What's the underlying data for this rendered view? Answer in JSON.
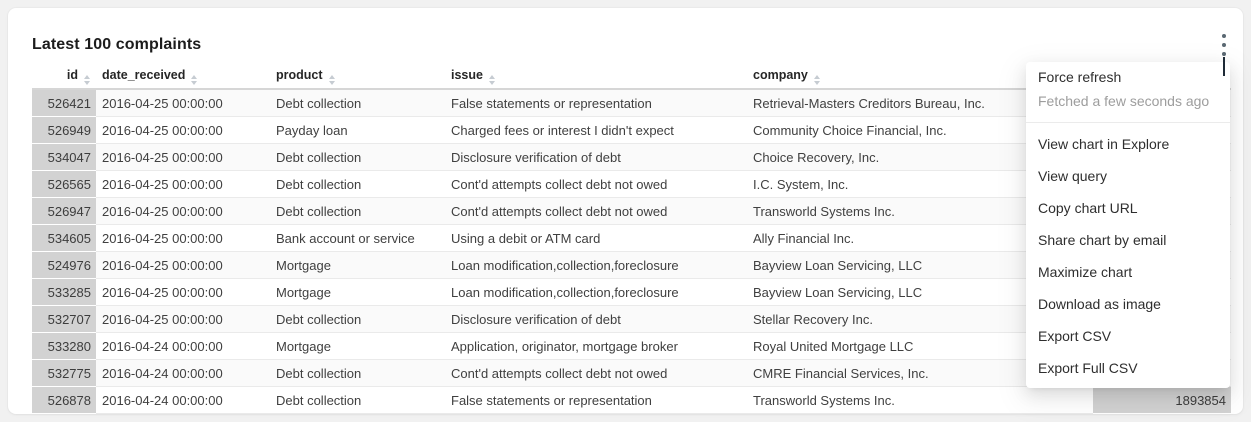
{
  "card": {
    "title": "Latest 100 complaints"
  },
  "colors": {
    "page_bg": "#f1f1f1",
    "card_bg": "#ffffff",
    "numeric_cell_bar": "#d2d2d2",
    "menu_status_text": "#9d9d9d",
    "kebab_icon": "#5a6872"
  },
  "table": {
    "columns": [
      {
        "label": "id",
        "sortable": true,
        "align": "right"
      },
      {
        "label": "date_received",
        "sortable": true,
        "align": "left"
      },
      {
        "label": "product",
        "sortable": true,
        "align": "left"
      },
      {
        "label": "issue",
        "sortable": true,
        "align": "left"
      },
      {
        "label": "company",
        "sortable": true,
        "align": "left"
      },
      {
        "label": "",
        "sortable": false,
        "align": "right"
      }
    ],
    "rows": [
      [
        "526421",
        "2016-04-25 00:00:00",
        "Debt collection",
        "False statements or representation",
        "Retrieval-Masters Creditors Bureau, Inc.",
        ""
      ],
      [
        "526949",
        "2016-04-25 00:00:00",
        "Payday loan",
        "Charged fees or interest I didn't expect",
        "Community Choice Financial, Inc.",
        ""
      ],
      [
        "534047",
        "2016-04-25 00:00:00",
        "Debt collection",
        "Disclosure verification of debt",
        "Choice Recovery, Inc.",
        ""
      ],
      [
        "526565",
        "2016-04-25 00:00:00",
        "Debt collection",
        "Cont'd attempts collect debt not owed",
        "I.C. System, Inc.",
        ""
      ],
      [
        "526947",
        "2016-04-25 00:00:00",
        "Debt collection",
        "Cont'd attempts collect debt not owed",
        "Transworld Systems Inc.",
        ""
      ],
      [
        "534605",
        "2016-04-25 00:00:00",
        "Bank account or service",
        "Using a debit or ATM card",
        "Ally Financial Inc.",
        ""
      ],
      [
        "524976",
        "2016-04-25 00:00:00",
        "Mortgage",
        "Loan modification,collection,foreclosure",
        "Bayview Loan Servicing, LLC",
        ""
      ],
      [
        "533285",
        "2016-04-25 00:00:00",
        "Mortgage",
        "Loan modification,collection,foreclosure",
        "Bayview Loan Servicing, LLC",
        ""
      ],
      [
        "532707",
        "2016-04-25 00:00:00",
        "Debt collection",
        "Disclosure verification of debt",
        "Stellar Recovery Inc.",
        ""
      ],
      [
        "533280",
        "2016-04-24 00:00:00",
        "Mortgage",
        "Application, originator, mortgage broker",
        "Royal United Mortgage LLC",
        ""
      ],
      [
        "532775",
        "2016-04-24 00:00:00",
        "Debt collection",
        "Cont'd attempts collect debt not owed",
        "CMRE Financial Services, Inc.",
        ""
      ],
      [
        "526878",
        "2016-04-24 00:00:00",
        "Debt collection",
        "False statements or representation",
        "Transworld Systems Inc.",
        "1893854"
      ]
    ]
  },
  "menu": {
    "refresh": {
      "label": "Force refresh",
      "status": "Fetched a few seconds ago"
    },
    "items": [
      "View chart in Explore",
      "View query",
      "Copy chart URL",
      "Share chart by email",
      "Maximize chart",
      "Download as image",
      "Export CSV",
      "Export Full CSV"
    ]
  }
}
